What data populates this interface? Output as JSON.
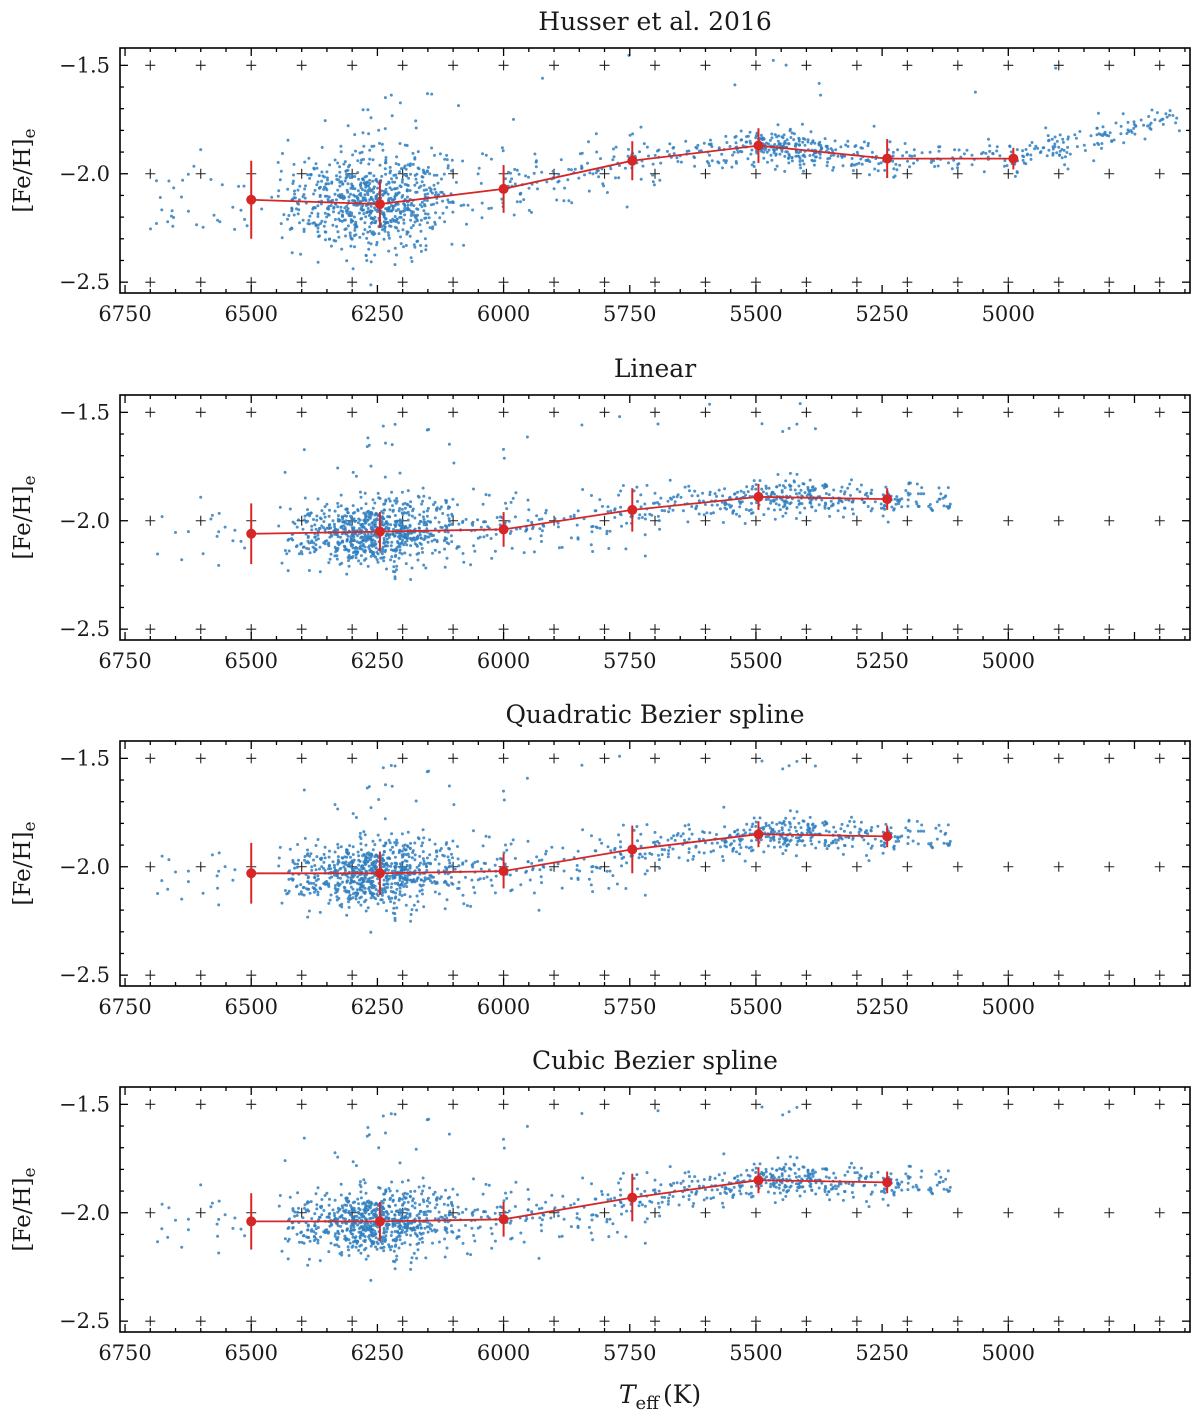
{
  "figure": {
    "x_axis_label": "T_eff (K)",
    "x_axis_label_main": "T",
    "x_axis_label_sub": "eff",
    "x_axis_label_unit": "(K)",
    "y_axis_label": "[Fe/H]e",
    "y_axis_label_main": "[Fe/H]",
    "y_axis_label_sub": "e"
  },
  "colors": {
    "scatter": "#2f7fbf",
    "fit": "#d62728"
  },
  "chart_data": [
    {
      "type": "scatter",
      "title": "Husser et al. 2016",
      "xlabel": "T_eff (K)",
      "ylabel": "[Fe/H]e",
      "xlim": [
        6760,
        4640
      ],
      "ylim": [
        -2.55,
        -1.42
      ],
      "xticks": [
        6750,
        6500,
        6250,
        6000,
        5750,
        5500,
        5250,
        5000
      ],
      "xticklabels": [
        "6750",
        "6500",
        "6250",
        "6000",
        "5750",
        "5500",
        "5250",
        "5000"
      ],
      "yticks": [
        -1.5,
        -2.0,
        -2.5
      ],
      "yticklabels": [
        "−1.5",
        "−2.0",
        "−2.5"
      ],
      "grid_markers": "plus",
      "x_max_data": 4660,
      "binned": {
        "x": [
          6500,
          6245,
          6000,
          5745,
          5495,
          5240,
          4990
        ],
        "y": [
          -2.12,
          -2.14,
          -2.07,
          -1.94,
          -1.87,
          -1.93,
          -1.93
        ],
        "yerr": [
          0.18,
          0.11,
          0.11,
          0.09,
          0.08,
          0.09,
          0.05
        ]
      }
    },
    {
      "type": "scatter",
      "title": "Linear",
      "xlabel": "T_eff (K)",
      "ylabel": "[Fe/H]e",
      "xlim": [
        6760,
        4640
      ],
      "ylim": [
        -2.55,
        -1.42
      ],
      "xticks": [
        6750,
        6500,
        6250,
        6000,
        5750,
        5500,
        5250,
        5000
      ],
      "xticklabels": [
        "6750",
        "6500",
        "6250",
        "6000",
        "5750",
        "5500",
        "5250",
        "5000"
      ],
      "yticks": [
        -1.5,
        -2.0,
        -2.5
      ],
      "yticklabels": [
        "−1.5",
        "−2.0",
        "−2.5"
      ],
      "grid_markers": "plus",
      "x_max_data": 5110,
      "binned": {
        "x": [
          6500,
          6245,
          6000,
          5745,
          5495,
          5240
        ],
        "y": [
          -2.06,
          -2.05,
          -2.04,
          -1.95,
          -1.89,
          -1.9
        ],
        "yerr": [
          0.14,
          0.09,
          0.08,
          0.1,
          0.06,
          0.05
        ]
      }
    },
    {
      "type": "scatter",
      "title": "Quadratic Bezier spline",
      "xlabel": "T_eff (K)",
      "ylabel": "[Fe/H]e",
      "xlim": [
        6760,
        4640
      ],
      "ylim": [
        -2.55,
        -1.42
      ],
      "xticks": [
        6750,
        6500,
        6250,
        6000,
        5750,
        5500,
        5250,
        5000
      ],
      "xticklabels": [
        "6750",
        "6500",
        "6250",
        "6000",
        "5750",
        "5500",
        "5250",
        "5000"
      ],
      "yticks": [
        -1.5,
        -2.0,
        -2.5
      ],
      "yticklabels": [
        "−1.5",
        "−2.0",
        "−2.5"
      ],
      "grid_markers": "plus",
      "x_max_data": 5110,
      "binned": {
        "x": [
          6500,
          6245,
          6000,
          5745,
          5495,
          5240
        ],
        "y": [
          -2.03,
          -2.03,
          -2.02,
          -1.92,
          -1.85,
          -1.86
        ],
        "yerr": [
          0.14,
          0.1,
          0.08,
          0.11,
          0.06,
          0.05
        ]
      }
    },
    {
      "type": "scatter",
      "title": "Cubic Bezier spline",
      "xlabel": "T_eff (K)",
      "ylabel": "[Fe/H]e",
      "xlim": [
        6760,
        4640
      ],
      "ylim": [
        -2.55,
        -1.42
      ],
      "xticks": [
        6750,
        6500,
        6250,
        6000,
        5750,
        5500,
        5250,
        5000
      ],
      "xticklabels": [
        "6750",
        "6500",
        "6250",
        "6000",
        "5750",
        "5500",
        "5250",
        "5000"
      ],
      "yticks": [
        -1.5,
        -2.0,
        -2.5
      ],
      "yticklabels": [
        "−1.5",
        "−2.0",
        "−2.5"
      ],
      "grid_markers": "plus",
      "x_max_data": 5110,
      "binned": {
        "x": [
          6500,
          6245,
          6000,
          5745,
          5495,
          5240
        ],
        "y": [
          -2.04,
          -2.04,
          -2.03,
          -1.93,
          -1.85,
          -1.86
        ],
        "yerr": [
          0.13,
          0.09,
          0.08,
          0.11,
          0.06,
          0.05
        ]
      }
    }
  ]
}
